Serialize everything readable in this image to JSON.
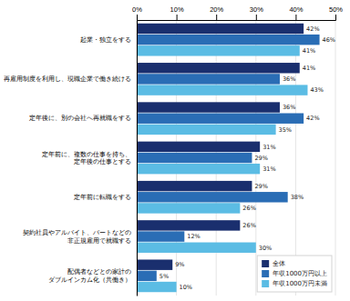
{
  "chart_data": {
    "type": "bar",
    "orientation": "horizontal",
    "categories": [
      "起業・独立をする",
      "再雇用制度を利用し、現職企業で働き続ける",
      "定年後に、別の会社へ再就職をする",
      "定年前に、複数の仕事を持ち、\n定年後の仕事とする",
      "定年前に転職をする",
      "契約社員やアルバイト、パートなどの\n非正規雇用で就職する",
      "配偶者などとの家計の\nダブルインカム化（共働き）"
    ],
    "series": [
      {
        "name": "全体",
        "color": "#1a2f6e",
        "values": [
          42,
          41,
          36,
          31,
          29,
          26,
          9
        ],
        "value_labels": [
          "42%",
          "41%",
          "36%",
          "31%",
          "29%",
          "26%",
          "9%"
        ]
      },
      {
        "name": "年収1000万円以上",
        "color": "#2a6db5",
        "values": [
          46,
          36,
          42,
          29,
          38,
          12,
          5
        ],
        "value_labels": [
          "46%",
          "36%",
          "42%",
          "29%",
          "38%",
          "12%",
          "5%"
        ]
      },
      {
        "name": "年収1000万円未満",
        "color": "#5bbce4",
        "values": [
          41,
          43,
          35,
          31,
          26,
          30,
          10
        ],
        "value_labels": [
          "41%",
          "43%",
          "35%",
          "31%",
          "26%",
          "30%",
          "10%"
        ]
      }
    ],
    "xlim": [
      0,
      50
    ],
    "xticks": [
      {
        "value": 0,
        "label": "0%"
      },
      {
        "value": 10,
        "label": "10%"
      },
      {
        "value": 20,
        "label": "20%"
      },
      {
        "value": 30,
        "label": "30%"
      },
      {
        "value": 40,
        "label": "40%"
      },
      {
        "value": 50,
        "label": "50%"
      }
    ],
    "grid": true,
    "legend": "lower right",
    "data_labels": true
  }
}
